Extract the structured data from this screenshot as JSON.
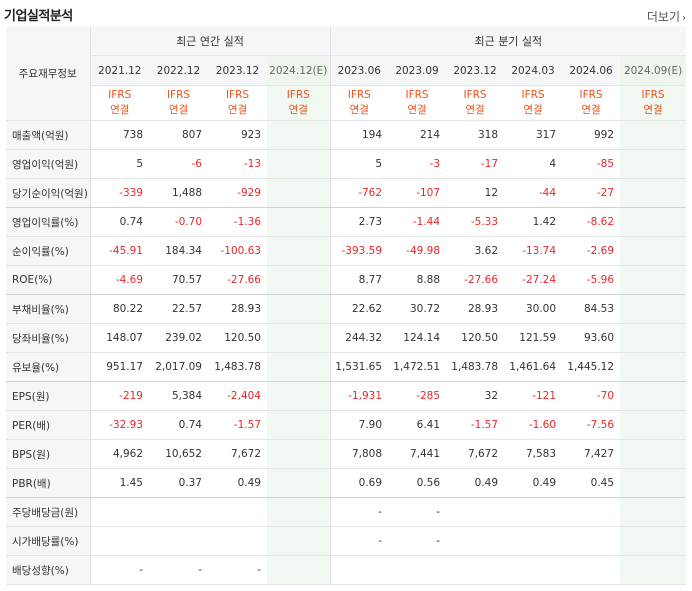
{
  "title": "기업실적분석",
  "more_label": "더보기",
  "header": {
    "label": "주요재무정보",
    "annual_group": "최근 연간 실적",
    "quarter_group": "최근 분기 실적",
    "annual_periods": [
      "2021.12",
      "2022.12",
      "2023.12",
      "2024.12(E)"
    ],
    "quarter_periods": [
      "2023.06",
      "2023.09",
      "2023.12",
      "2024.03",
      "2024.06",
      "2024.09(E)"
    ],
    "ifrs_line1": "IFRS",
    "ifrs_line2": "연결"
  },
  "rows": [
    {
      "label": "매출액(억원)",
      "annual": [
        "738",
        "807",
        "923",
        ""
      ],
      "quarter": [
        "194",
        "214",
        "318",
        "317",
        "992",
        ""
      ]
    },
    {
      "label": "영업이익(억원)",
      "annual": [
        "5",
        "-6",
        "-13",
        ""
      ],
      "quarter": [
        "5",
        "-3",
        "-17",
        "4",
        "-85",
        ""
      ]
    },
    {
      "label": "당기순이익(억원)",
      "annual": [
        "-339",
        "1,488",
        "-929",
        ""
      ],
      "quarter": [
        "-762",
        "-107",
        "12",
        "-44",
        "-27",
        ""
      ]
    },
    {
      "label": "영업이익률(%)",
      "annual": [
        "0.74",
        "-0.70",
        "-1.36",
        ""
      ],
      "quarter": [
        "2.73",
        "-1.44",
        "-5.33",
        "1.42",
        "-8.62",
        ""
      ]
    },
    {
      "label": "순이익률(%)",
      "annual": [
        "-45.91",
        "184.34",
        "-100.63",
        ""
      ],
      "quarter": [
        "-393.59",
        "-49.98",
        "3.62",
        "-13.74",
        "-2.69",
        ""
      ]
    },
    {
      "label": "ROE(%)",
      "annual": [
        "-4.69",
        "70.57",
        "-27.66",
        ""
      ],
      "quarter": [
        "8.77",
        "8.88",
        "-27.66",
        "-27.24",
        "-5.96",
        ""
      ]
    },
    {
      "label": "부채비율(%)",
      "annual": [
        "80.22",
        "22.57",
        "28.93",
        ""
      ],
      "quarter": [
        "22.62",
        "30.72",
        "28.93",
        "30.00",
        "84.53",
        ""
      ]
    },
    {
      "label": "당좌비율(%)",
      "annual": [
        "148.07",
        "239.02",
        "120.50",
        ""
      ],
      "quarter": [
        "244.32",
        "124.14",
        "120.50",
        "121.59",
        "93.60",
        ""
      ]
    },
    {
      "label": "유보율(%)",
      "annual": [
        "951.17",
        "2,017.09",
        "1,483.78",
        ""
      ],
      "quarter": [
        "1,531.65",
        "1,472.51",
        "1,483.78",
        "1,461.64",
        "1,445.12",
        ""
      ]
    },
    {
      "label": "EPS(원)",
      "annual": [
        "-219",
        "5,384",
        "-2,404",
        ""
      ],
      "quarter": [
        "-1,931",
        "-285",
        "32",
        "-121",
        "-70",
        ""
      ]
    },
    {
      "label": "PER(배)",
      "annual": [
        "-32.93",
        "0.74",
        "-1.57",
        ""
      ],
      "quarter": [
        "7.90",
        "6.41",
        "-1.57",
        "-1.60",
        "-7.56",
        ""
      ]
    },
    {
      "label": "BPS(원)",
      "annual": [
        "4,962",
        "10,652",
        "7,672",
        ""
      ],
      "quarter": [
        "7,808",
        "7,441",
        "7,672",
        "7,583",
        "7,427",
        ""
      ]
    },
    {
      "label": "PBR(배)",
      "annual": [
        "1.45",
        "0.37",
        "0.49",
        ""
      ],
      "quarter": [
        "0.69",
        "0.56",
        "0.49",
        "0.49",
        "0.45",
        ""
      ]
    },
    {
      "label": "주당배당금(원)",
      "annual": [
        "",
        "",
        "",
        ""
      ],
      "quarter": [
        "-",
        "-",
        "",
        "",
        "",
        ""
      ]
    },
    {
      "label": "시가배당률(%)",
      "annual": [
        "",
        "",
        "",
        ""
      ],
      "quarter": [
        "-",
        "-",
        "",
        "",
        "",
        ""
      ]
    },
    {
      "label": "배당성향(%)",
      "annual": [
        "-",
        "-",
        "-",
        ""
      ],
      "quarter": [
        "",
        "",
        "",
        "",
        "",
        ""
      ]
    }
  ],
  "colors": {
    "negative": "#e8272a",
    "ifrs": "#e8531c",
    "estimate_bg": "#f1f7f1"
  }
}
